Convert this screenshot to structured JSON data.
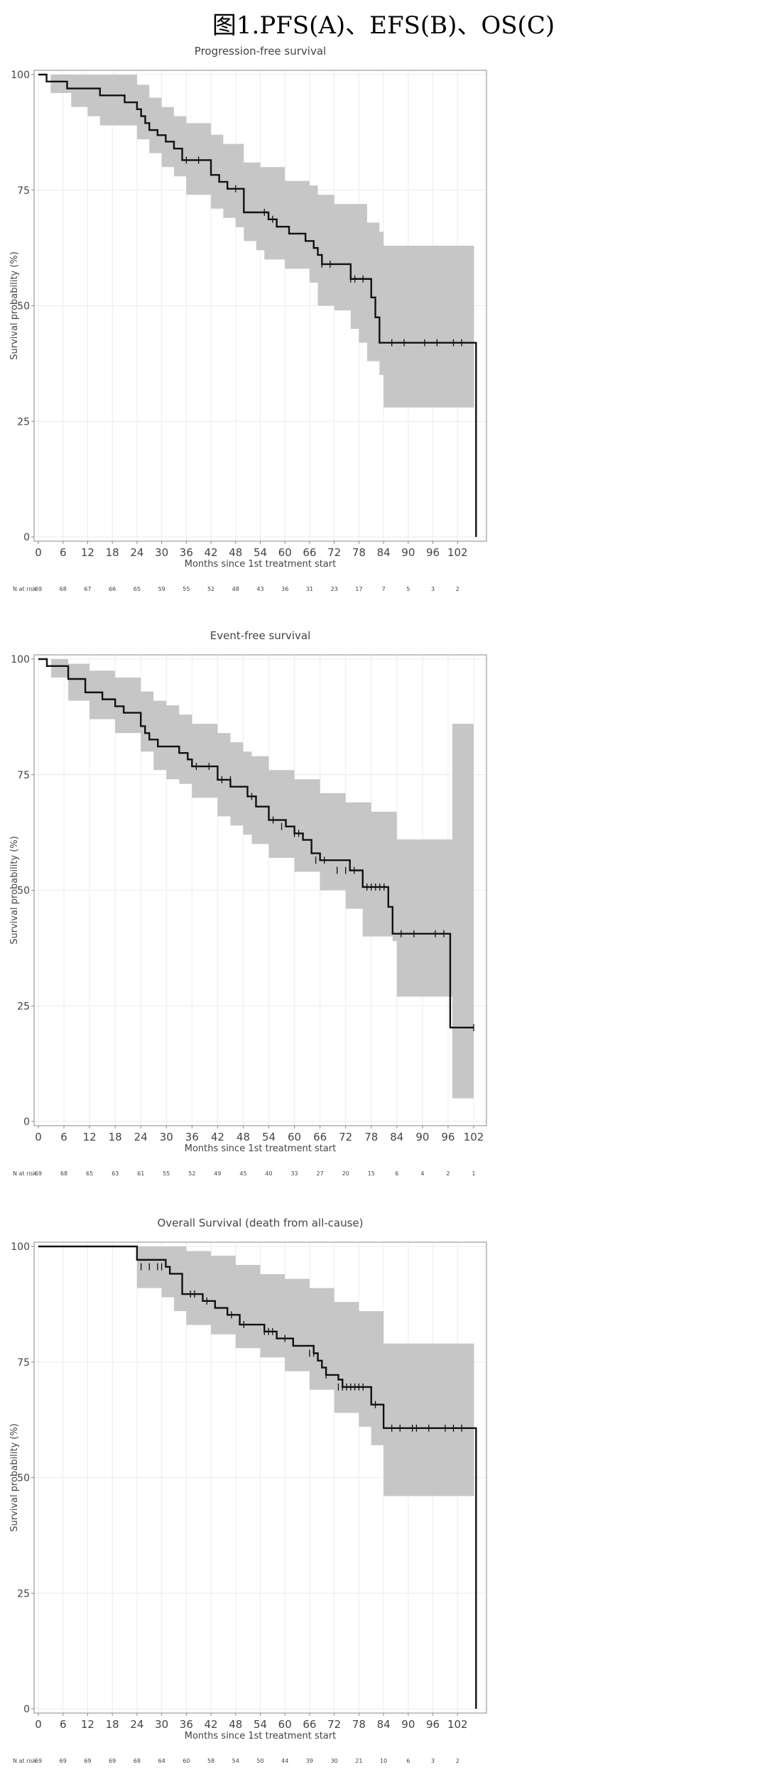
{
  "figure_title": "图1.PFS(A)、EFS(B)、OS(C)",
  "colors": {
    "curve": "#111111",
    "ci_band": "#c6c6c6",
    "frame": "#8a8a8a",
    "grid": "#ececec",
    "text": "#444444"
  },
  "chart_data": [
    {
      "type": "line",
      "title": "Progression-free survival",
      "xlabel": "Months since 1st treatment start",
      "ylabel": "Survival probability (%)",
      "xlim": [
        0,
        108
      ],
      "ylim": [
        0,
        100
      ],
      "xticks": [
        "0",
        "6",
        "12",
        "18",
        "24",
        "30",
        "36",
        "42",
        "48",
        "54",
        "60",
        "66",
        "72",
        "78",
        "84",
        "90",
        "96",
        "102"
      ],
      "yticks": [
        "0",
        "25",
        "50",
        "75",
        "100"
      ],
      "risk_label": "N at risk",
      "risk": [
        "69",
        "68",
        "67",
        "66",
        "65",
        "59",
        "55",
        "52",
        "48",
        "43",
        "36",
        "31",
        "23",
        "17",
        "7",
        "5",
        "3",
        "2"
      ],
      "series": [
        {
          "x": [
            0,
            2,
            7,
            15,
            21,
            24,
            25,
            26,
            27,
            29,
            31,
            33,
            35,
            42,
            44,
            46,
            50,
            51,
            56,
            58,
            61,
            65,
            67,
            68,
            69,
            76,
            81,
            82,
            83,
            84,
            106.5
          ],
          "y": [
            100,
            98.5,
            97,
            95.5,
            94,
            92.5,
            91,
            89.5,
            88,
            86.9,
            85.5,
            84,
            81.5,
            78.3,
            76.8,
            75.3,
            70.2,
            70.2,
            68.7,
            67.1,
            65.6,
            64,
            62.5,
            61,
            59,
            55.8,
            51.8,
            47.5,
            42,
            42,
            0
          ],
          "censor_x": [
            36,
            39,
            48,
            55,
            57,
            69,
            71,
            76,
            77,
            79,
            86,
            89,
            94,
            97,
            101,
            103
          ],
          "censor_y": [
            81.5,
            81.5,
            75.3,
            70.2,
            68.7,
            59,
            59,
            55.8,
            55.8,
            55.8,
            42,
            42,
            42,
            42,
            42,
            42
          ]
        }
      ],
      "ci_upper_x": [
        0,
        3,
        15,
        24,
        27,
        30,
        33,
        36,
        42,
        45,
        50,
        54,
        60,
        66,
        68,
        72,
        80,
        83,
        84,
        106
      ],
      "ci_upper_y": [
        100,
        100,
        100,
        97.8,
        95,
        93,
        91,
        89.5,
        87,
        85,
        81,
        80,
        77,
        76,
        74,
        72,
        68,
        66,
        63,
        63
      ],
      "ci_lower_x": [
        0,
        3,
        8,
        12,
        15,
        24,
        27,
        30,
        33,
        36,
        42,
        45,
        48,
        50,
        53,
        55,
        60,
        66,
        68,
        72,
        76,
        78,
        80,
        83,
        84,
        106
      ],
      "ci_lower_y": [
        100,
        96,
        93,
        91,
        89,
        86,
        83,
        80,
        78,
        74,
        71,
        69,
        67,
        64,
        62,
        60,
        58,
        55,
        50,
        49,
        45,
        42,
        38,
        35,
        28,
        28
      ]
    },
    {
      "type": "line",
      "title": "Event-free survival",
      "xlabel": "Months since 1st treatment start",
      "ylabel": "Survival probability (%)",
      "xlim": [
        0,
        104
      ],
      "ylim": [
        0,
        100
      ],
      "xticks": [
        "0",
        "6",
        "12",
        "18",
        "24",
        "30",
        "36",
        "42",
        "48",
        "54",
        "60",
        "66",
        "72",
        "78",
        "84",
        "90",
        "96",
        "102"
      ],
      "yticks": [
        "0",
        "25",
        "50",
        "75",
        "100"
      ],
      "risk_label": "N at risk",
      "risk": [
        "69",
        "68",
        "65",
        "63",
        "61",
        "55",
        "52",
        "49",
        "45",
        "40",
        "33",
        "27",
        "20",
        "15",
        "6",
        "4",
        "2",
        "1"
      ],
      "series": [
        {
          "x": [
            0,
            2,
            7,
            11,
            15,
            18,
            20,
            24,
            25,
            26,
            28,
            30,
            33,
            35,
            36,
            42,
            45,
            49,
            51,
            54,
            56,
            58,
            60,
            62,
            64,
            66,
            68,
            73,
            75,
            76,
            82,
            83,
            84,
            96.5,
            97,
            102
          ],
          "y": [
            100,
            98.5,
            95.7,
            92.8,
            91.3,
            89.8,
            88.4,
            85.5,
            84,
            82.6,
            81.1,
            81.1,
            79.7,
            78.3,
            76.8,
            73.9,
            72.4,
            70.3,
            68.1,
            65.2,
            65.2,
            63.8,
            62.3,
            60.9,
            58,
            56.5,
            56.5,
            54.3,
            54.3,
            50.7,
            46.4,
            40.6,
            40.6,
            20.3,
            20.3,
            20.3
          ],
          "censor_x": [
            37,
            40,
            43,
            45,
            50,
            55,
            57,
            60,
            61,
            65,
            67,
            70,
            72,
            74,
            77,
            78,
            79,
            80,
            81,
            85,
            88,
            93,
            95,
            102
          ],
          "censor_y": [
            76.8,
            76.8,
            73.9,
            73.9,
            70.3,
            65.2,
            63.8,
            62.3,
            62.3,
            56.5,
            56.5,
            54.3,
            54.3,
            54.3,
            50.7,
            50.7,
            50.7,
            50.7,
            50.7,
            40.6,
            40.6,
            40.6,
            40.6,
            20.3
          ]
        }
      ],
      "ci_upper_x": [
        0,
        3,
        7,
        12,
        18,
        24,
        27,
        30,
        33,
        36,
        42,
        45,
        48,
        50,
        54,
        60,
        66,
        72,
        78,
        84,
        96,
        96.5,
        97,
        102
      ],
      "ci_upper_y": [
        100,
        100,
        99,
        97.5,
        96,
        93,
        91,
        90,
        88,
        86,
        84,
        82,
        80,
        79,
        76,
        74,
        71,
        69,
        67,
        61,
        61,
        61,
        86,
        86
      ],
      "ci_lower_x": [
        0,
        3,
        7,
        12,
        18,
        24,
        27,
        30,
        33,
        36,
        42,
        45,
        48,
        50,
        54,
        60,
        66,
        72,
        76,
        83,
        84,
        96.5,
        97,
        102
      ],
      "ci_lower_y": [
        100,
        96,
        91,
        87,
        84,
        80,
        76,
        74,
        73,
        70,
        66,
        64,
        62,
        60,
        57,
        54,
        50,
        46,
        40,
        39,
        27,
        27,
        5,
        5
      ]
    },
    {
      "type": "line",
      "title": "Overall Survival (death from all-cause)",
      "xlabel": "Months since 1st treatment start",
      "ylabel": "Survival probability (%)",
      "xlim": [
        0,
        108
      ],
      "ylim": [
        0,
        100
      ],
      "xticks": [
        "0",
        "6",
        "12",
        "18",
        "24",
        "30",
        "36",
        "42",
        "48",
        "54",
        "60",
        "66",
        "72",
        "78",
        "84",
        "90",
        "96",
        "102"
      ],
      "yticks": [
        "0",
        "25",
        "50",
        "75",
        "100"
      ],
      "risk_label": "N at risk",
      "risk": [
        "69",
        "69",
        "69",
        "69",
        "68",
        "64",
        "60",
        "58",
        "54",
        "50",
        "44",
        "39",
        "30",
        "21",
        "10",
        "6",
        "3",
        "2"
      ],
      "series": [
        {
          "x": [
            0,
            23,
            24,
            31,
            32,
            35,
            40,
            43,
            46,
            49,
            55,
            58,
            62,
            67,
            68,
            69,
            70,
            71,
            72,
            73,
            74,
            76,
            81,
            84,
            106.5
          ],
          "y": [
            100,
            100,
            97.1,
            95.6,
            94.1,
            89.7,
            88.2,
            86.7,
            85.2,
            83.1,
            81.6,
            80.1,
            78.5,
            76.9,
            75.3,
            73.8,
            72.2,
            72.2,
            72.2,
            71.2,
            69.6,
            69.6,
            65.8,
            60.7,
            0
          ],
          "censor_x": [
            25,
            27,
            29,
            30,
            37,
            38,
            41,
            47,
            50,
            55,
            56,
            57,
            60,
            66,
            67,
            70,
            73,
            74,
            75,
            76,
            77,
            78,
            79,
            82,
            86,
            88,
            91,
            92,
            95,
            99,
            101,
            103
          ],
          "censor_y": [
            95.6,
            95.6,
            95.6,
            95.6,
            89.7,
            89.7,
            88.2,
            85.2,
            83.1,
            81.6,
            81.6,
            81.6,
            80.1,
            76.9,
            76.9,
            72.2,
            69.6,
            69.6,
            69.6,
            69.6,
            69.6,
            69.6,
            69.6,
            65.8,
            60.7,
            60.7,
            60.7,
            60.7,
            60.7,
            60.7,
            60.7,
            60.7
          ]
        }
      ],
      "ci_upper_x": [
        0,
        23,
        24,
        30,
        33,
        36,
        42,
        48,
        54,
        60,
        66,
        72,
        78,
        84,
        106
      ],
      "ci_upper_y": [
        100,
        100,
        100,
        100,
        100,
        99,
        98,
        96,
        94,
        93,
        91,
        88,
        86,
        79,
        79
      ],
      "ci_lower_x": [
        0,
        23,
        24,
        30,
        33,
        36,
        42,
        48,
        54,
        60,
        66,
        72,
        78,
        81,
        84,
        106
      ],
      "ci_lower_y": [
        100,
        100,
        91,
        89,
        86,
        83,
        81,
        78,
        76,
        73,
        69,
        64,
        61,
        57,
        46,
        46
      ]
    }
  ]
}
